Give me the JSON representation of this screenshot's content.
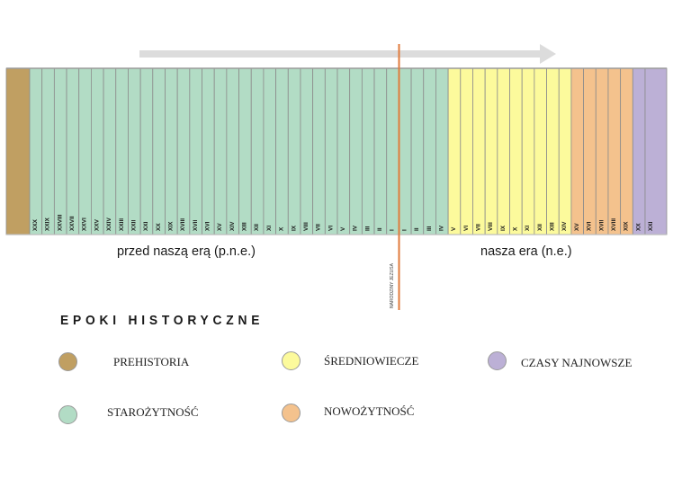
{
  "title": "EPOKI HISTORYCZNE",
  "era_labels": {
    "bc": "przed naszą erą  (p.n.e.)",
    "ad": "nasza era  (n.e.)"
  },
  "marker": {
    "label": "NARODZINY JEZUSA",
    "color": "#e07b3c"
  },
  "arrow_color": "#dcdcdc",
  "epochs": {
    "prehistoria": {
      "name": "PREHISTORIA",
      "color": "#c09f62"
    },
    "starozytnosc": {
      "name": "STAROŻYTNOŚĆ",
      "color": "#b2dcc5"
    },
    "sredniowiecze": {
      "name": "ŚREDNIOWIECZE",
      "color": "#fcfa9c"
    },
    "nowozytnosc": {
      "name": "NOWOŻYTNOŚĆ",
      "color": "#f4c28d"
    },
    "czasy_najnowsze": {
      "name": "CZASY NAJNOWSZE",
      "color": "#bcb0d6"
    }
  },
  "centuries": [
    {
      "label": "",
      "epoch": "prehistoria"
    },
    {
      "label": "XXX",
      "epoch": "starozytnosc"
    },
    {
      "label": "XXIX",
      "epoch": "starozytnosc"
    },
    {
      "label": "XXVIII",
      "epoch": "starozytnosc"
    },
    {
      "label": "XXVII",
      "epoch": "starozytnosc"
    },
    {
      "label": "XXVI",
      "epoch": "starozytnosc"
    },
    {
      "label": "XXV",
      "epoch": "starozytnosc"
    },
    {
      "label": "XXIV",
      "epoch": "starozytnosc"
    },
    {
      "label": "XXIII",
      "epoch": "starozytnosc"
    },
    {
      "label": "XXII",
      "epoch": "starozytnosc"
    },
    {
      "label": "XXI",
      "epoch": "starozytnosc"
    },
    {
      "label": "XX",
      "epoch": "starozytnosc"
    },
    {
      "label": "XIX",
      "epoch": "starozytnosc"
    },
    {
      "label": "XVIII",
      "epoch": "starozytnosc"
    },
    {
      "label": "XVII",
      "epoch": "starozytnosc"
    },
    {
      "label": "XVI",
      "epoch": "starozytnosc"
    },
    {
      "label": "XV",
      "epoch": "starozytnosc"
    },
    {
      "label": "XIV",
      "epoch": "starozytnosc"
    },
    {
      "label": "XIII",
      "epoch": "starozytnosc"
    },
    {
      "label": "XII",
      "epoch": "starozytnosc"
    },
    {
      "label": "XI",
      "epoch": "starozytnosc"
    },
    {
      "label": "X",
      "epoch": "starozytnosc"
    },
    {
      "label": "IX",
      "epoch": "starozytnosc"
    },
    {
      "label": "VIII",
      "epoch": "starozytnosc"
    },
    {
      "label": "VII",
      "epoch": "starozytnosc"
    },
    {
      "label": "VI",
      "epoch": "starozytnosc"
    },
    {
      "label": "V",
      "epoch": "starozytnosc"
    },
    {
      "label": "IV",
      "epoch": "starozytnosc"
    },
    {
      "label": "III",
      "epoch": "starozytnosc"
    },
    {
      "label": "II",
      "epoch": "starozytnosc"
    },
    {
      "label": "I",
      "epoch": "starozytnosc"
    },
    {
      "label": "I",
      "epoch": "starozytnosc"
    },
    {
      "label": "II",
      "epoch": "starozytnosc"
    },
    {
      "label": "III",
      "epoch": "starozytnosc"
    },
    {
      "label": "IV",
      "epoch": "starozytnosc"
    },
    {
      "label": "V",
      "epoch": "sredniowiecze"
    },
    {
      "label": "VI",
      "epoch": "sredniowiecze"
    },
    {
      "label": "VII",
      "epoch": "sredniowiecze"
    },
    {
      "label": "VIII",
      "epoch": "sredniowiecze"
    },
    {
      "label": "IX",
      "epoch": "sredniowiecze"
    },
    {
      "label": "X",
      "epoch": "sredniowiecze"
    },
    {
      "label": "XI",
      "epoch": "sredniowiecze"
    },
    {
      "label": "XII",
      "epoch": "sredniowiecze"
    },
    {
      "label": "XIII",
      "epoch": "sredniowiecze"
    },
    {
      "label": "XIV",
      "epoch": "sredniowiecze"
    },
    {
      "label": "XV",
      "epoch": "nowozytnosc"
    },
    {
      "label": "XVI",
      "epoch": "nowozytnosc"
    },
    {
      "label": "XVII",
      "epoch": "nowozytnosc"
    },
    {
      "label": "XVIII",
      "epoch": "nowozytnosc"
    },
    {
      "label": "XIX",
      "epoch": "nowozytnosc"
    },
    {
      "label": "XX",
      "epoch": "czasy_najnowsze"
    },
    {
      "label": "XXI",
      "epoch": "czasy_najnowsze"
    }
  ],
  "legend": [
    {
      "key": "prehistoria",
      "label": "PREHISTORIA"
    },
    {
      "key": "sredniowiecze",
      "label": "ŚREDNIOWIECZE"
    },
    {
      "key": "czasy_najnowsze",
      "label": "CZASY NAJNOWSZE"
    },
    {
      "key": "starozytnosc",
      "label": "STAROŻYTNOŚĆ"
    },
    {
      "key": "nowozytnosc",
      "label": "NOWOŻYTNOŚĆ"
    }
  ]
}
